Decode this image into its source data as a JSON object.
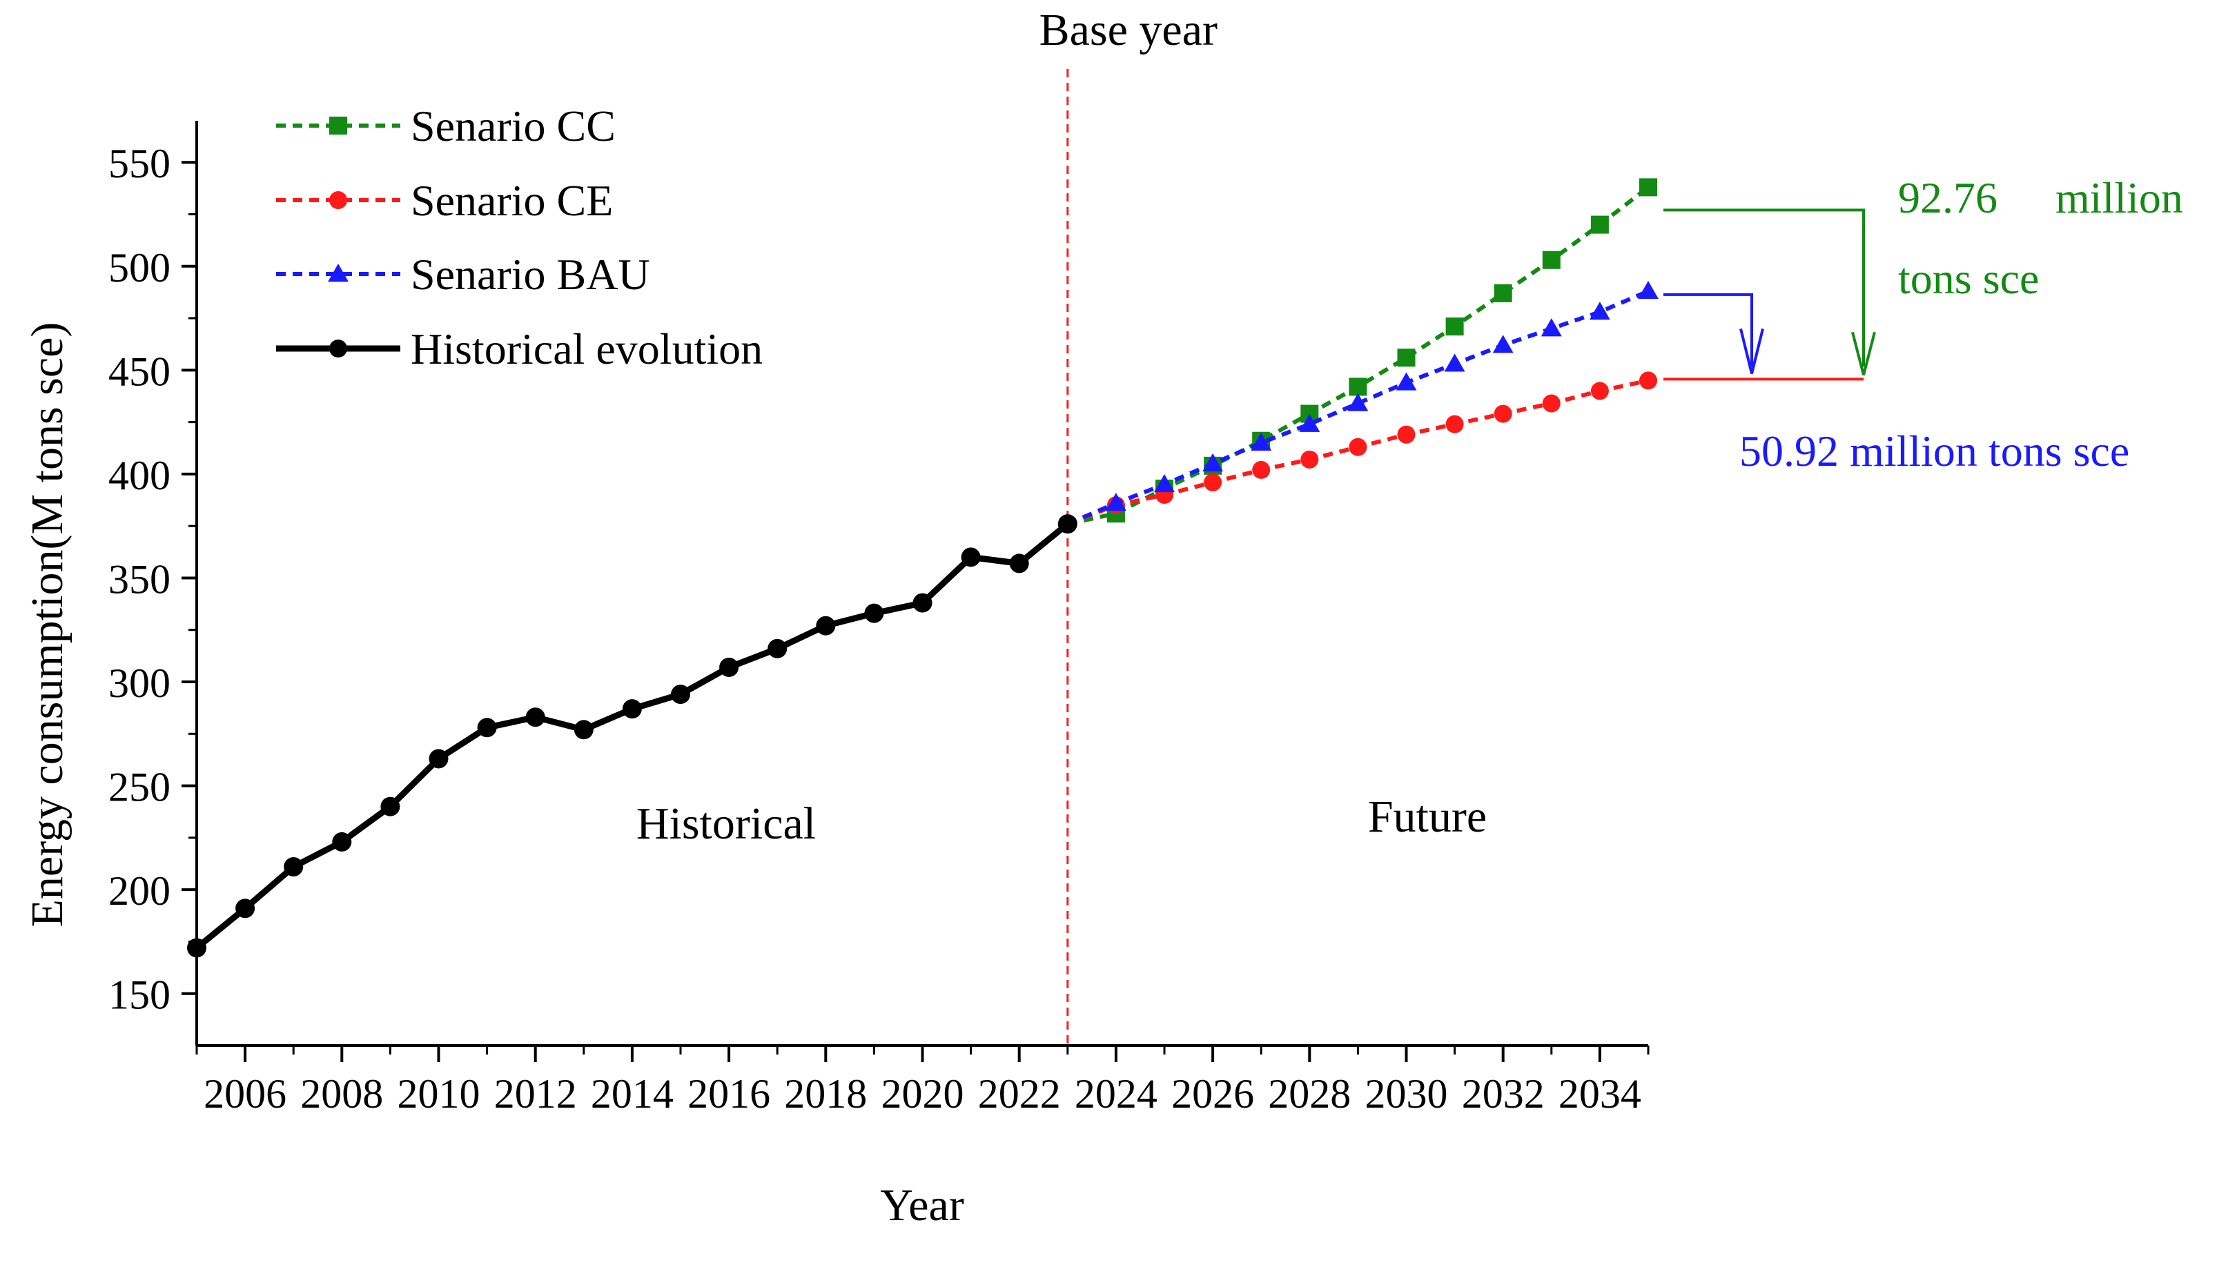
{
  "chart_data": {
    "type": "line",
    "title": "",
    "xlabel": "Year",
    "ylabel": "Energy consumption(M tons sce)",
    "xlim": [
      2005,
      2035
    ],
    "ylim": [
      125,
      570
    ],
    "x_ticks": [
      2006,
      2008,
      2010,
      2012,
      2014,
      2016,
      2018,
      2020,
      2022,
      2024,
      2026,
      2028,
      2030,
      2032,
      2034
    ],
    "y_ticks": [
      150,
      200,
      250,
      300,
      350,
      400,
      450,
      500,
      550
    ],
    "legend_position": "top-left",
    "series": [
      {
        "name": "Senario CC",
        "color": "#138a13",
        "marker": "square",
        "dash": true,
        "x": [
          2023,
          2024,
          2025,
          2026,
          2027,
          2028,
          2029,
          2030,
          2031,
          2032,
          2033,
          2034,
          2035
        ],
        "values": [
          376,
          381,
          393,
          404,
          416,
          429,
          442,
          456,
          471,
          487,
          503,
          520,
          538
        ]
      },
      {
        "name": "Senario CE",
        "color": "#ff1a1a",
        "marker": "circle",
        "dash": true,
        "x": [
          2023,
          2024,
          2025,
          2026,
          2027,
          2028,
          2029,
          2030,
          2031,
          2032,
          2033,
          2034,
          2035
        ],
        "values": [
          376,
          385,
          390,
          396,
          402,
          407,
          413,
          419,
          424,
          429,
          434,
          440,
          445
        ]
      },
      {
        "name": "Senario BAU",
        "color": "#1a1aff",
        "marker": "triangle",
        "dash": true,
        "x": [
          2023,
          2024,
          2025,
          2026,
          2027,
          2028,
          2029,
          2030,
          2031,
          2032,
          2033,
          2034,
          2035
        ],
        "values": [
          376,
          386,
          395,
          405,
          415,
          424,
          434,
          444,
          453,
          462,
          470,
          478,
          488
        ]
      },
      {
        "name": "Historical evolution",
        "color": "#000000",
        "marker": "circle",
        "dash": false,
        "x": [
          2005,
          2006,
          2007,
          2008,
          2009,
          2010,
          2011,
          2012,
          2013,
          2014,
          2015,
          2016,
          2017,
          2018,
          2019,
          2020,
          2021,
          2022,
          2023
        ],
        "values": [
          172,
          191,
          211,
          223,
          240,
          263,
          278,
          283,
          277,
          287,
          294,
          307,
          316,
          327,
          333,
          338,
          360,
          357,
          376
        ]
      }
    ],
    "base_year": {
      "x": 2023,
      "label": "Base year",
      "color": "#ff1a1a"
    },
    "region_labels": {
      "historical": "Historical",
      "future": "Future"
    },
    "annotations": {
      "cc_gap_line1": "92.76",
      "cc_gap_line2": "million",
      "cc_gap_line3": "tons sce",
      "bau_gap": "50.92 million tons sce",
      "cc_color": "#138a13",
      "bau_color": "#1a1aff",
      "ce_color": "#ff1a1a"
    }
  }
}
